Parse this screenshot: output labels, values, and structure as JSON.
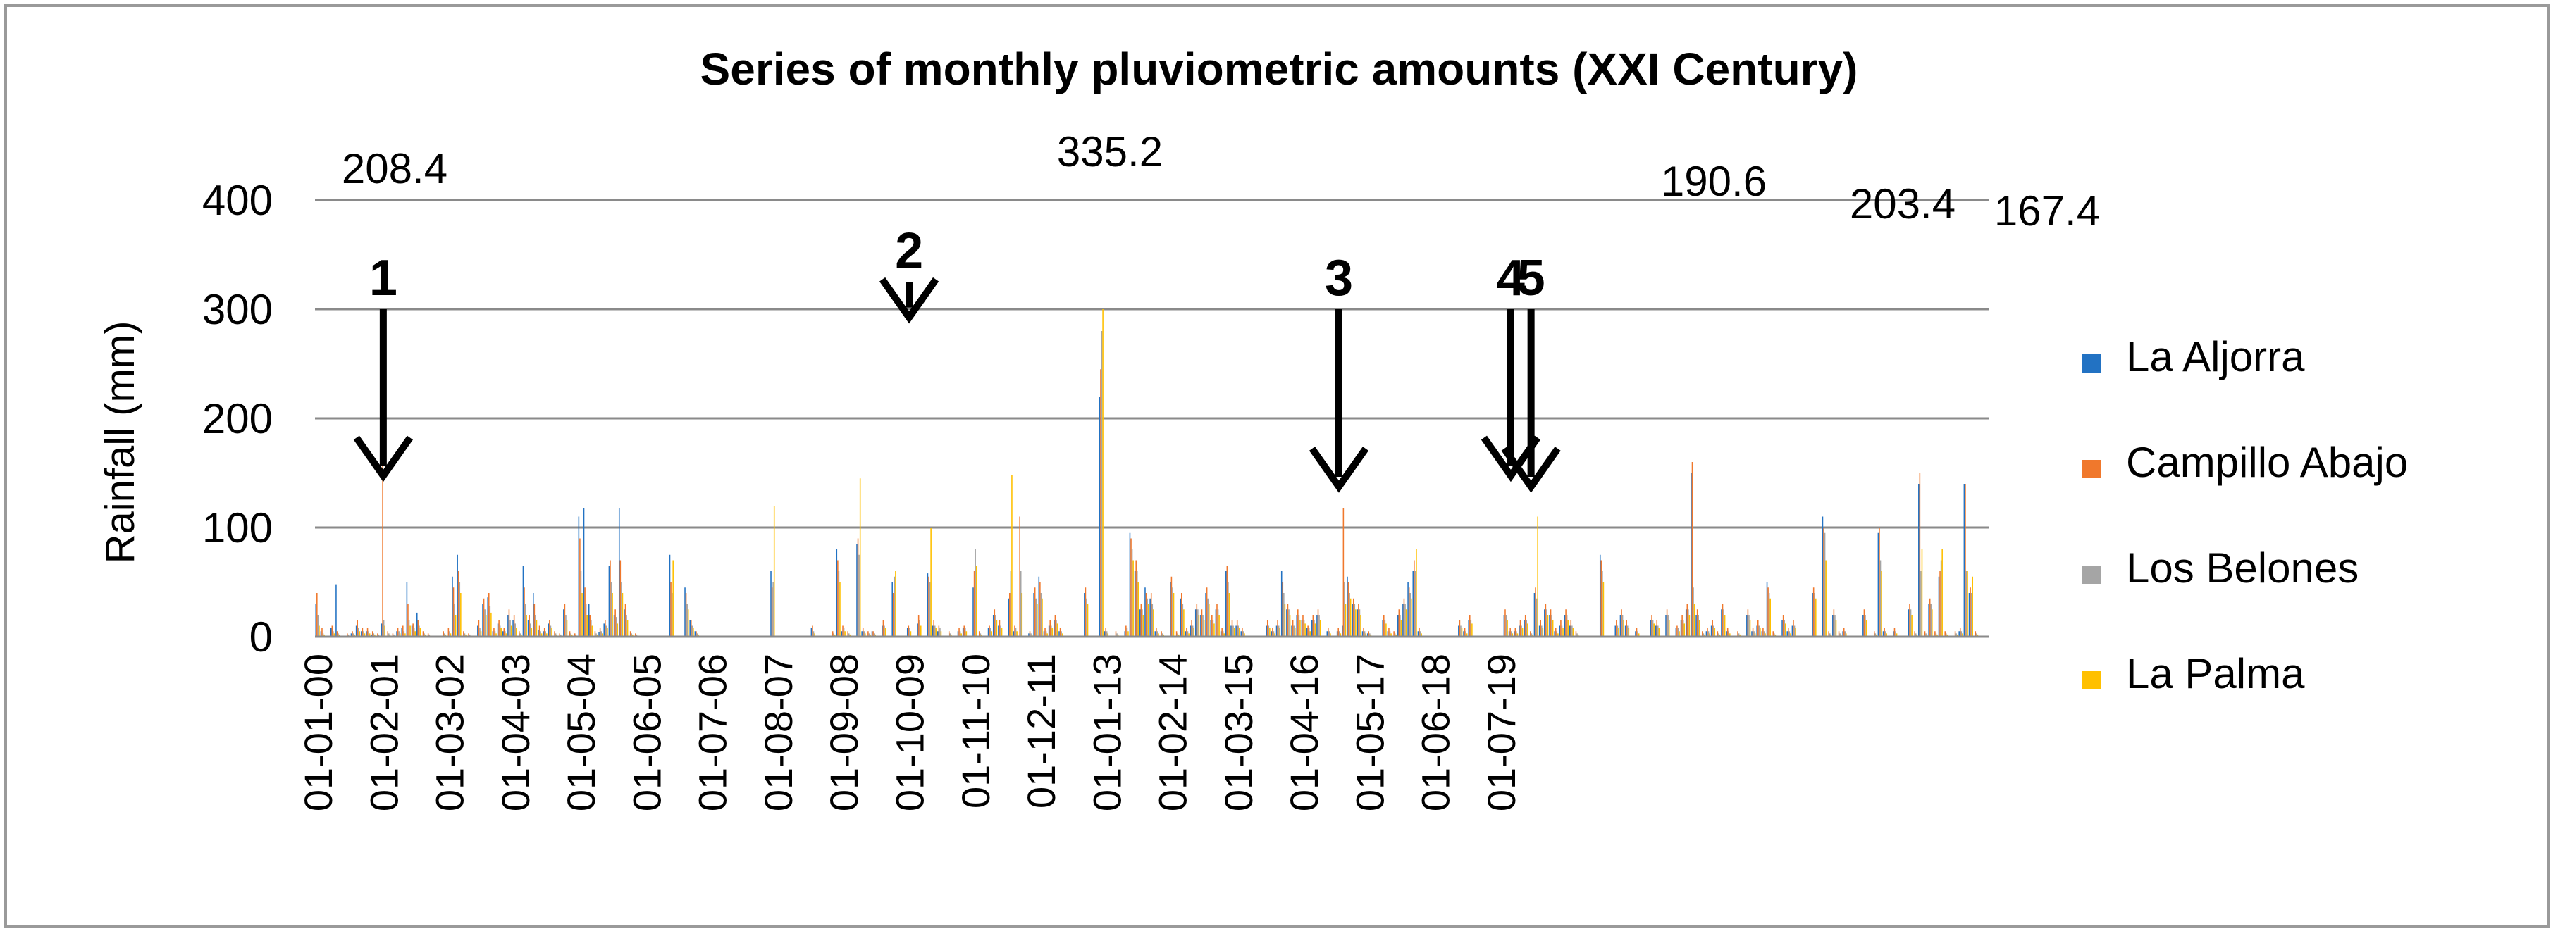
{
  "chart_data": {
    "type": "bar",
    "title": "Series of monthly pluviometric amounts (XXI Century)",
    "xlabel": "",
    "ylabel": "Rainfall (mm)",
    "ylim": [
      0,
      400
    ],
    "yticks": [
      0,
      100,
      200,
      300,
      400
    ],
    "grid": "horizontal",
    "legend_position": "right",
    "x_start": "2000-01",
    "x_tick_labels": [
      "01-01-00",
      "01-02-01",
      "01-03-02",
      "01-04-03",
      "01-05-04",
      "01-06-05",
      "01-07-06",
      "01-08-07",
      "01-09-08",
      "01-10-09",
      "01-11-10",
      "01-12-11",
      "01-01-13",
      "01-02-14",
      "01-03-15",
      "01-04-16",
      "01-05-17",
      "01-06-18",
      "01-07-19"
    ],
    "series": [
      {
        "name": "La Aljorra",
        "color": "#2272C3",
        "values": [
          30,
          5,
          0,
          8,
          48,
          0,
          0,
          3,
          10,
          5,
          5,
          2,
          0,
          12,
          0,
          0,
          5,
          8,
          50,
          10,
          22,
          0,
          0,
          0,
          0,
          0,
          0,
          55,
          75,
          0,
          0,
          0,
          10,
          30,
          36,
          5,
          12,
          5,
          20,
          15,
          0,
          65,
          15,
          40,
          6,
          5,
          12,
          0,
          0,
          25,
          0,
          0,
          110,
          118,
          30,
          0,
          4,
          12,
          65,
          20,
          118,
          25,
          0,
          0,
          0,
          0,
          0,
          0,
          0,
          0,
          75,
          0,
          0,
          45,
          15,
          5,
          0,
          0,
          0,
          0,
          0,
          0,
          0,
          0,
          0,
          0,
          0,
          0,
          0,
          0,
          60,
          0,
          0,
          0,
          0,
          0,
          0,
          0,
          8,
          0,
          0,
          0,
          0,
          80,
          5,
          0,
          0,
          85,
          5,
          0,
          5,
          0,
          10,
          0,
          50,
          0,
          0,
          8,
          0,
          12,
          0,
          58,
          10,
          5,
          0,
          0,
          0,
          5,
          8,
          0,
          45,
          0,
          0,
          8,
          20,
          10,
          0,
          35,
          5,
          0,
          0,
          3,
          40,
          55,
          5,
          10,
          15,
          5,
          0,
          0,
          0,
          0,
          40,
          0,
          0,
          220,
          5,
          0,
          0,
          0,
          5,
          95,
          60,
          25,
          45,
          35,
          5,
          0,
          0,
          50,
          0,
          35,
          5,
          10,
          25,
          20,
          40,
          15,
          25,
          5,
          60,
          10,
          10,
          5,
          0,
          0,
          0,
          0,
          10,
          5,
          10,
          60,
          25,
          10,
          20,
          15,
          8,
          15,
          20,
          0,
          5,
          0,
          5,
          10,
          55,
          30,
          25,
          5,
          3,
          0,
          0,
          15,
          5,
          0,
          20,
          30,
          50,
          60,
          5,
          0,
          0,
          0,
          0,
          0,
          0,
          0,
          10,
          5,
          15,
          0,
          0,
          0,
          0,
          0,
          0,
          20,
          5,
          5,
          10,
          15,
          0,
          40,
          10,
          25,
          20,
          5,
          10,
          20,
          10,
          0,
          0,
          0,
          0,
          0,
          75,
          0,
          0,
          10,
          20,
          10,
          0,
          5,
          0,
          0,
          15,
          10,
          0,
          20,
          0,
          8,
          15,
          25,
          150,
          20,
          0,
          5,
          10,
          0,
          25,
          5,
          0,
          0,
          0,
          20,
          5,
          10,
          5,
          50,
          0,
          0,
          15,
          5,
          10,
          0,
          0,
          0,
          40,
          0,
          110,
          0,
          20,
          0,
          5,
          0,
          0,
          0,
          20,
          0,
          0,
          95,
          5,
          0,
          5,
          0,
          0,
          25,
          0,
          140,
          0,
          30,
          0,
          55,
          0,
          0,
          0,
          5,
          140,
          40,
          0,
          0,
          0
        ]
      },
      {
        "name": "Campillo Abajo",
        "color": "#F0782C",
        "values": [
          40,
          8,
          0,
          10,
          5,
          0,
          3,
          5,
          15,
          8,
          8,
          5,
          3,
          160,
          5,
          3,
          8,
          10,
          30,
          12,
          15,
          5,
          3,
          0,
          0,
          5,
          8,
          45,
          60,
          5,
          3,
          0,
          15,
          35,
          40,
          8,
          15,
          8,
          25,
          20,
          5,
          45,
          20,
          30,
          10,
          8,
          15,
          5,
          3,
          30,
          5,
          3,
          90,
          45,
          20,
          5,
          8,
          15,
          70,
          25,
          70,
          30,
          5,
          3,
          0,
          0,
          0,
          0,
          0,
          0,
          50,
          0,
          0,
          40,
          15,
          5,
          0,
          0,
          0,
          0,
          0,
          0,
          0,
          0,
          0,
          0,
          0,
          0,
          0,
          0,
          45,
          0,
          0,
          0,
          0,
          0,
          0,
          0,
          10,
          0,
          0,
          0,
          5,
          70,
          10,
          5,
          0,
          90,
          8,
          5,
          5,
          0,
          15,
          0,
          40,
          0,
          0,
          10,
          0,
          20,
          0,
          55,
          15,
          10,
          0,
          5,
          0,
          8,
          10,
          0,
          60,
          5,
          0,
          10,
          25,
          15,
          0,
          40,
          10,
          110,
          0,
          5,
          45,
          50,
          8,
          15,
          20,
          8,
          0,
          0,
          0,
          0,
          45,
          0,
          0,
          245,
          8,
          0,
          5,
          0,
          10,
          90,
          70,
          30,
          40,
          40,
          8,
          5,
          0,
          55,
          5,
          40,
          8,
          15,
          30,
          25,
          45,
          20,
          30,
          8,
          65,
          15,
          15,
          8,
          0,
          0,
          0,
          0,
          15,
          8,
          15,
          50,
          30,
          15,
          25,
          20,
          10,
          20,
          25,
          0,
          8,
          0,
          8,
          118,
          50,
          35,
          30,
          8,
          5,
          0,
          0,
          20,
          8,
          5,
          25,
          35,
          45,
          70,
          8,
          0,
          0,
          0,
          0,
          0,
          0,
          0,
          15,
          8,
          20,
          0,
          0,
          0,
          0,
          0,
          0,
          25,
          8,
          8,
          15,
          20,
          5,
          45,
          15,
          30,
          25,
          8,
          15,
          25,
          15,
          5,
          0,
          0,
          0,
          0,
          70,
          0,
          0,
          15,
          25,
          15,
          0,
          8,
          0,
          0,
          20,
          15,
          0,
          25,
          0,
          10,
          20,
          30,
          160,
          25,
          5,
          8,
          15,
          5,
          30,
          8,
          0,
          5,
          0,
          25,
          8,
          15,
          8,
          45,
          5,
          0,
          20,
          8,
          15,
          0,
          0,
          0,
          45,
          0,
          100,
          5,
          25,
          5,
          8,
          0,
          0,
          0,
          25,
          0,
          5,
          100,
          8,
          0,
          8,
          0,
          0,
          30,
          5,
          150,
          5,
          35,
          5,
          60,
          5,
          0,
          5,
          8,
          140,
          45,
          5,
          0,
          0
        ]
      },
      {
        "name": "Los Belones",
        "color": "#A5A5A5",
        "values": [
          20,
          3,
          0,
          5,
          3,
          0,
          2,
          3,
          8,
          5,
          5,
          3,
          2,
          15,
          3,
          2,
          5,
          5,
          15,
          8,
          10,
          3,
          2,
          0,
          0,
          3,
          5,
          30,
          50,
          3,
          2,
          0,
          8,
          25,
          28,
          5,
          10,
          5,
          15,
          12,
          3,
          30,
          12,
          20,
          5,
          5,
          10,
          3,
          2,
          20,
          3,
          2,
          60,
          30,
          15,
          3,
          5,
          10,
          50,
          18,
          50,
          20,
          3,
          2,
          0,
          0,
          0,
          0,
          0,
          0,
          40,
          0,
          0,
          30,
          10,
          3,
          0,
          0,
          0,
          0,
          0,
          0,
          0,
          0,
          0,
          0,
          0,
          0,
          0,
          0,
          50,
          0,
          0,
          0,
          0,
          0,
          0,
          0,
          5,
          0,
          0,
          0,
          3,
          60,
          8,
          3,
          0,
          75,
          5,
          3,
          3,
          0,
          10,
          0,
          55,
          0,
          0,
          8,
          0,
          15,
          0,
          50,
          10,
          8,
          0,
          3,
          0,
          5,
          8,
          0,
          80,
          3,
          0,
          8,
          20,
          10,
          0,
          60,
          8,
          60,
          0,
          3,
          35,
          40,
          5,
          10,
          15,
          5,
          0,
          0,
          0,
          0,
          35,
          0,
          0,
          280,
          5,
          0,
          3,
          0,
          8,
          80,
          60,
          25,
          35,
          30,
          5,
          3,
          0,
          45,
          3,
          30,
          5,
          10,
          25,
          20,
          35,
          15,
          25,
          5,
          50,
          10,
          10,
          5,
          0,
          0,
          0,
          0,
          10,
          5,
          10,
          40,
          25,
          10,
          20,
          15,
          8,
          15,
          20,
          0,
          5,
          0,
          5,
          50,
          40,
          30,
          25,
          5,
          3,
          0,
          0,
          15,
          5,
          3,
          20,
          30,
          40,
          60,
          5,
          0,
          0,
          0,
          0,
          0,
          0,
          0,
          10,
          5,
          15,
          0,
          0,
          0,
          0,
          0,
          0,
          20,
          5,
          5,
          10,
          15,
          3,
          35,
          10,
          25,
          20,
          5,
          10,
          20,
          10,
          3,
          0,
          0,
          0,
          0,
          60,
          0,
          0,
          10,
          20,
          10,
          0,
          5,
          0,
          0,
          15,
          10,
          0,
          20,
          0,
          8,
          15,
          25,
          45,
          20,
          3,
          5,
          10,
          3,
          25,
          5,
          0,
          3,
          0,
          20,
          5,
          10,
          5,
          40,
          3,
          0,
          15,
          5,
          10,
          0,
          0,
          0,
          40,
          0,
          95,
          3,
          20,
          3,
          5,
          0,
          0,
          0,
          20,
          0,
          3,
          70,
          5,
          0,
          5,
          0,
          0,
          25,
          3,
          60,
          3,
          30,
          3,
          70,
          3,
          0,
          3,
          5,
          60,
          40,
          3,
          0,
          0
        ]
      },
      {
        "name": "La Palma",
        "color": "#FFC000",
        "values": [
          10,
          2,
          0,
          3,
          2,
          0,
          1,
          2,
          5,
          3,
          3,
          2,
          1,
          10,
          2,
          1,
          3,
          3,
          10,
          5,
          8,
          2,
          1,
          0,
          0,
          2,
          3,
          20,
          40,
          2,
          1,
          0,
          5,
          20,
          22,
          3,
          8,
          3,
          10,
          8,
          2,
          20,
          8,
          15,
          3,
          3,
          8,
          2,
          1,
          15,
          2,
          1,
          40,
          20,
          10,
          2,
          3,
          8,
          40,
          12,
          40,
          15,
          2,
          1,
          0,
          0,
          0,
          0,
          0,
          0,
          70,
          0,
          0,
          25,
          8,
          2,
          0,
          0,
          0,
          0,
          0,
          0,
          0,
          0,
          0,
          0,
          0,
          0,
          0,
          0,
          120,
          0,
          0,
          0,
          0,
          0,
          0,
          0,
          3,
          0,
          0,
          0,
          2,
          50,
          5,
          2,
          0,
          145,
          3,
          2,
          2,
          0,
          8,
          0,
          60,
          0,
          0,
          5,
          0,
          10,
          0,
          100,
          8,
          5,
          0,
          2,
          0,
          3,
          5,
          0,
          65,
          2,
          0,
          5,
          15,
          8,
          0,
          148,
          5,
          40,
          0,
          2,
          30,
          35,
          3,
          8,
          12,
          3,
          0,
          0,
          0,
          0,
          30,
          0,
          0,
          300,
          3,
          0,
          2,
          0,
          5,
          70,
          50,
          20,
          30,
          25,
          3,
          2,
          0,
          40,
          2,
          25,
          3,
          8,
          20,
          15,
          30,
          12,
          20,
          3,
          40,
          8,
          8,
          3,
          0,
          0,
          0,
          0,
          8,
          3,
          8,
          30,
          20,
          8,
          15,
          12,
          5,
          12,
          15,
          0,
          3,
          0,
          3,
          30,
          35,
          25,
          20,
          3,
          2,
          0,
          0,
          12,
          3,
          2,
          15,
          25,
          35,
          80,
          3,
          0,
          0,
          0,
          0,
          0,
          0,
          0,
          8,
          3,
          12,
          0,
          0,
          0,
          0,
          0,
          0,
          15,
          3,
          3,
          8,
          12,
          2,
          110,
          8,
          20,
          15,
          3,
          8,
          15,
          8,
          2,
          0,
          0,
          0,
          0,
          50,
          0,
          0,
          8,
          15,
          8,
          0,
          3,
          0,
          0,
          12,
          8,
          0,
          15,
          0,
          5,
          12,
          20,
          30,
          15,
          2,
          3,
          8,
          2,
          20,
          3,
          0,
          2,
          0,
          15,
          3,
          8,
          3,
          35,
          2,
          0,
          12,
          3,
          8,
          0,
          0,
          0,
          35,
          0,
          70,
          2,
          15,
          2,
          3,
          0,
          0,
          0,
          15,
          0,
          2,
          60,
          3,
          0,
          3,
          0,
          0,
          20,
          2,
          80,
          2,
          25,
          2,
          80,
          2,
          0,
          2,
          3,
          60,
          55,
          2,
          0,
          0
        ]
      }
    ],
    "annotations": [
      {
        "number": "1",
        "value": "208.4",
        "x_month": 13,
        "arrow_tip_y": 150
      },
      {
        "number": "2",
        "value": "335.2",
        "x_month": 117,
        "arrow_tip_y": 295
      },
      {
        "number": "3",
        "value": "190.6",
        "x_month": 202,
        "arrow_tip_y": 140
      },
      {
        "number": "4",
        "value": "203.4",
        "x_month": 236,
        "arrow_tip_y": 150
      },
      {
        "number": "5",
        "value": "167.4",
        "x_month": 240,
        "arrow_tip_y": 140
      }
    ]
  }
}
